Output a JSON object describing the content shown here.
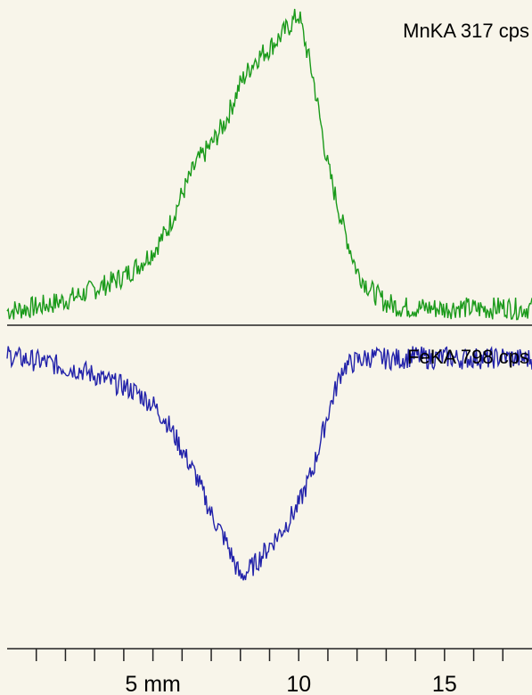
{
  "chart_data": [
    {
      "type": "line",
      "title": "",
      "series": [
        {
          "name": "MnKA 317 cps",
          "color": "#1a9a1a",
          "x": [
            0,
            0.5,
            1,
            1.5,
            2,
            2.5,
            3,
            3.5,
            4,
            4.5,
            5,
            5.5,
            6,
            6.5,
            7,
            7.5,
            8,
            8.5,
            9,
            9.5,
            10,
            10.5,
            11,
            11.5,
            12,
            12.5,
            13,
            13.5,
            14,
            14.5,
            15,
            15.5,
            16,
            16.5,
            17,
            17.5,
            18
          ],
          "values": [
            10,
            12,
            14,
            17,
            21,
            26,
            32,
            38,
            45,
            56,
            70,
            92,
            128,
            160,
            178,
            202,
            240,
            264,
            276,
            292,
            310,
            245,
            156,
            98,
            50,
            30,
            18,
            14,
            13,
            13,
            12,
            14,
            12,
            12,
            14,
            12,
            13
          ]
        }
      ],
      "xlim": [
        0,
        18
      ],
      "ylim": [
        0,
        320
      ]
    },
    {
      "type": "line",
      "title": "",
      "series": [
        {
          "name": "FeKA 798 cps",
          "color": "#2222aa",
          "x": [
            0,
            0.5,
            1,
            1.5,
            2,
            2.5,
            3,
            3.5,
            4,
            4.5,
            5,
            5.5,
            6,
            6.5,
            7,
            7.5,
            8,
            8.5,
            9,
            9.5,
            10,
            10.5,
            11,
            11.5,
            12,
            12.5,
            13,
            13.5,
            14,
            14.5,
            15,
            15.5,
            16,
            16.5,
            17,
            17.5,
            18
          ],
          "values": [
            775,
            770,
            768,
            765,
            760,
            758,
            752,
            745,
            740,
            732,
            720,
            700,
            670,
            640,
            600,
            570,
            530,
            545,
            565,
            585,
            610,
            650,
            710,
            760,
            768,
            772,
            770,
            770,
            773,
            770,
            772,
            770,
            771,
            770,
            772,
            770,
            770
          ]
        }
      ],
      "xlim": [
        0,
        18
      ],
      "ylim": [
        460,
        800
      ]
    }
  ],
  "axis": {
    "ticks": [
      1,
      2,
      3,
      4,
      5,
      6,
      7,
      8,
      9,
      10,
      11,
      12,
      13,
      14,
      15,
      16,
      17
    ],
    "tick_labels": [
      {
        "value": 5,
        "text": "5 mm"
      },
      {
        "value": 10,
        "text": "10"
      },
      {
        "value": 15,
        "text": "15"
      }
    ]
  }
}
